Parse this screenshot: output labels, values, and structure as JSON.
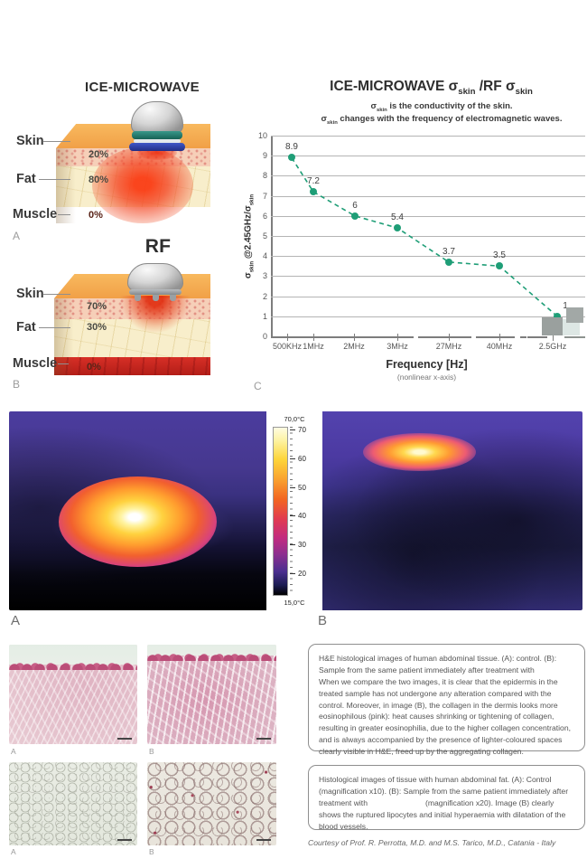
{
  "figure_a": {
    "title": "ICE-MICROWAVE",
    "labels": {
      "skin": "Skin",
      "fat": "Fat",
      "muscle": "Muscle"
    },
    "percentages": {
      "skin": "20%",
      "fat": "80%",
      "muscle": "0%"
    },
    "panel_label": "A"
  },
  "figure_b": {
    "title": "RF",
    "labels": {
      "skin": "Skin",
      "fat": "Fat",
      "muscle": "Muscle"
    },
    "percentages": {
      "skin": "70%",
      "fat": "30%",
      "muscle": "0%"
    },
    "panel_label": "B"
  },
  "chart": {
    "title": "ICE-MICROWAVE σ_skin_ /RF σ_skin_",
    "subtitle1": "σ_skin_ is the conductivity of the skin.",
    "subtitle2": "σ_skin_ changes with the frequency of electromagnetic waves.",
    "ylabel": "σ_skin_ @2.45GHz/σ_skin_",
    "xlabel": "Frequency [Hz]",
    "xlabel_note": "(nonlinear x-axis)",
    "panel_label": "C"
  },
  "chart_data": {
    "type": "line",
    "title": "ICE-MICROWAVE σskin / RF σskin",
    "categories": [
      "500KHz",
      "1MHz",
      "2MHz",
      "3MHz",
      "27MHz",
      "40MHz",
      "2.5GHz"
    ],
    "values": [
      8.9,
      7.2,
      6,
      5.4,
      3.7,
      3.5,
      1
    ],
    "point_labels": [
      "8.9",
      "7.2",
      "6",
      "5.4",
      "3.7",
      "3.5",
      "1"
    ],
    "xlabel": "Frequency [Hz]",
    "ylabel": "σskin @2.45GHz/σskin",
    "ylim": [
      0,
      10
    ],
    "y_ticks": [
      0,
      1,
      2,
      3,
      4,
      5,
      6,
      7,
      8,
      9,
      10
    ],
    "grid": true,
    "legend": "none",
    "line_color": "#1f9e77",
    "style": "dashed line with round markers, nonlinear x-axis with axis breaks"
  },
  "thermal": {
    "panel_label_a": "A",
    "panel_label_b": "B",
    "colorbar": {
      "max": "70,0°C",
      "min": "15,0°C",
      "ticks": [
        "70",
        "60",
        "50",
        "40",
        "30",
        "20"
      ]
    }
  },
  "histology": {
    "row1_label_a": "A",
    "row1_label_b": "B",
    "row2_label_a": "A",
    "row2_label_b": "B",
    "box1_p1": "H&E histological images of human abdominal tissue. (A): control. (B): Sample from the same patient immediately after treatment with",
    "box1_p2": "When we compare the two images, it is clear that the epidermis in the treated sample has not undergone any alteration compared with the control. Moreover, in image (B), the collagen in the dermis looks more eosinophilous (pink): heat causes shrinking or tightening of collagen, resulting in greater eosinophilia, due to the higher collagen concentration, and is always accompanied by the presence of lighter-coloured spaces clearly visible in H&E, freed up by the aggregating collagen.",
    "box2_p1": "Histological images of tissue with human abdominal fat. (A): Control (magnification x10). (B): Sample from the same patient immediately after treatment with",
    "box2_p2": "(magnification x20). Image (B) clearly shows the ruptured lipocytes and initial hyperaemia with dilatation of the blood vessels.",
    "courtesy": "Courtesy of Prof. R. Perrotta, M.D. and M.S. Tarico, M.D., Catania - Italy"
  }
}
